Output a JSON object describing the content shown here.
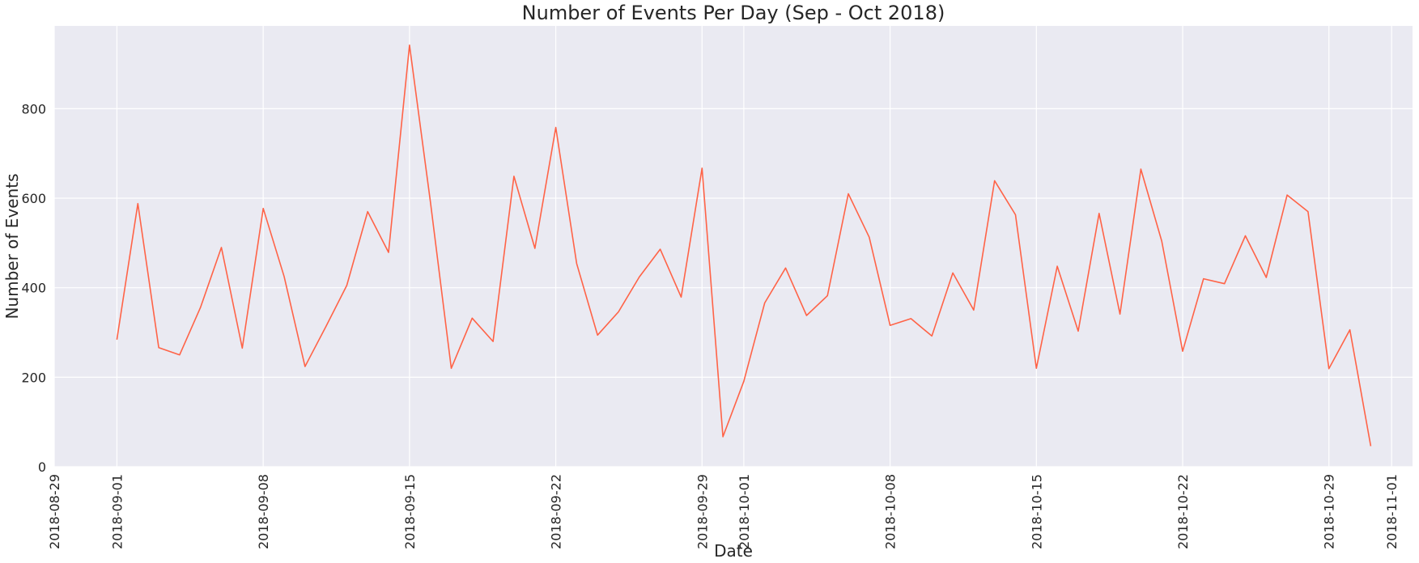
{
  "chart_data": {
    "type": "line",
    "title": "Number of Events Per Day (Sep - Oct 2018)",
    "xlabel": "Date",
    "ylabel": "Number of Events",
    "xlim": [
      "2018-08-29",
      "2018-11-02"
    ],
    "ylim": [
      0,
      985
    ],
    "grid": true,
    "x_ticks": [
      "2018-08-29",
      "2018-09-01",
      "2018-09-08",
      "2018-09-15",
      "2018-09-22",
      "2018-09-29",
      "2018-10-01",
      "2018-10-08",
      "2018-10-15",
      "2018-10-22",
      "2018-10-29",
      "2018-11-01"
    ],
    "y_ticks": [
      0,
      200,
      400,
      600,
      800
    ],
    "line_color": "#ff6347",
    "series": [
      {
        "x": [
          "2018-09-01",
          "2018-09-02",
          "2018-09-03",
          "2018-09-04",
          "2018-09-05",
          "2018-09-06",
          "2018-09-07",
          "2018-09-08",
          "2018-09-09",
          "2018-09-10",
          "2018-09-11",
          "2018-09-12",
          "2018-09-13",
          "2018-09-14",
          "2018-09-15",
          "2018-09-16",
          "2018-09-17",
          "2018-09-18",
          "2018-09-19",
          "2018-09-20",
          "2018-09-21",
          "2018-09-22",
          "2018-09-23",
          "2018-09-24",
          "2018-09-25",
          "2018-09-26",
          "2018-09-27",
          "2018-09-28",
          "2018-09-29",
          "2018-09-30",
          "2018-10-01",
          "2018-10-02",
          "2018-10-03",
          "2018-10-04",
          "2018-10-05",
          "2018-10-06",
          "2018-10-07",
          "2018-10-08",
          "2018-10-09",
          "2018-10-10",
          "2018-10-11",
          "2018-10-12",
          "2018-10-13",
          "2018-10-14",
          "2018-10-15",
          "2018-10-16",
          "2018-10-17",
          "2018-10-18",
          "2018-10-19",
          "2018-10-20",
          "2018-10-21",
          "2018-10-22",
          "2018-10-23",
          "2018-10-24",
          "2018-10-25",
          "2018-10-26",
          "2018-10-27",
          "2018-10-28",
          "2018-10-29",
          "2018-10-30",
          "2018-10-31"
        ],
        "values": [
          284,
          588,
          266,
          250,
          356,
          490,
          265,
          577,
          425,
          224,
          313,
          405,
          570,
          479,
          942,
          592,
          220,
          332,
          280,
          649,
          488,
          758,
          454,
          294,
          346,
          424,
          486,
          379,
          667,
          67,
          191,
          366,
          444,
          338,
          382,
          610,
          513,
          316,
          331,
          292,
          433,
          350,
          639,
          563,
          220,
          448,
          303,
          566,
          341,
          665,
          504,
          258,
          420,
          409,
          516,
          423,
          607,
          570,
          219,
          306,
          46
        ]
      }
    ]
  }
}
